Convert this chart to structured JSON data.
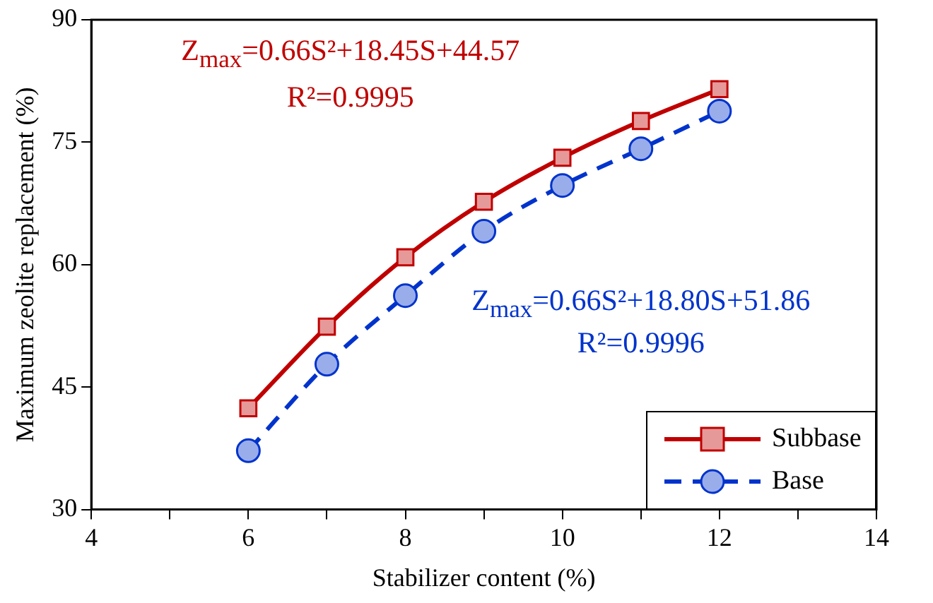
{
  "chart_data": {
    "type": "line",
    "xlabel": "Stabilizer content (%)",
    "ylabel": "Maximum zeolite replacement (%)",
    "x": [
      6,
      7,
      8,
      9,
      10,
      11,
      12
    ],
    "series": [
      {
        "name": "Subbase",
        "color": "#c00000",
        "marker": "square",
        "line_style": "solid",
        "values": [
          42.4,
          52.4,
          60.9,
          67.7,
          73.1,
          77.6,
          81.5
        ]
      },
      {
        "name": "Base",
        "color": "#0033cc",
        "marker": "circle",
        "line_style": "dashed",
        "values": [
          37.2,
          47.8,
          56.2,
          64.1,
          69.7,
          74.2,
          78.8
        ]
      }
    ],
    "xlim": [
      4,
      14
    ],
    "xticks": [
      4,
      {
        "value": 5,
        "label": null
      },
      6,
      {
        "value": 7,
        "label": null
      },
      8,
      {
        "value": 9,
        "label": null
      },
      10,
      {
        "value": 11,
        "label": null
      },
      12,
      {
        "value": 13,
        "label": null
      },
      14
    ],
    "ylim": [
      30,
      90
    ],
    "yticks": [
      30,
      45,
      60,
      75,
      90
    ],
    "grid": false,
    "legend": "bottom right",
    "annotations": [
      "Z$_{max}$=0.66S²+18.45S+44.57",
      "R²=0.9995",
      "Z$_{max}$=0.66S²+18.80S+51.86",
      "R²=0.9996"
    ]
  }
}
